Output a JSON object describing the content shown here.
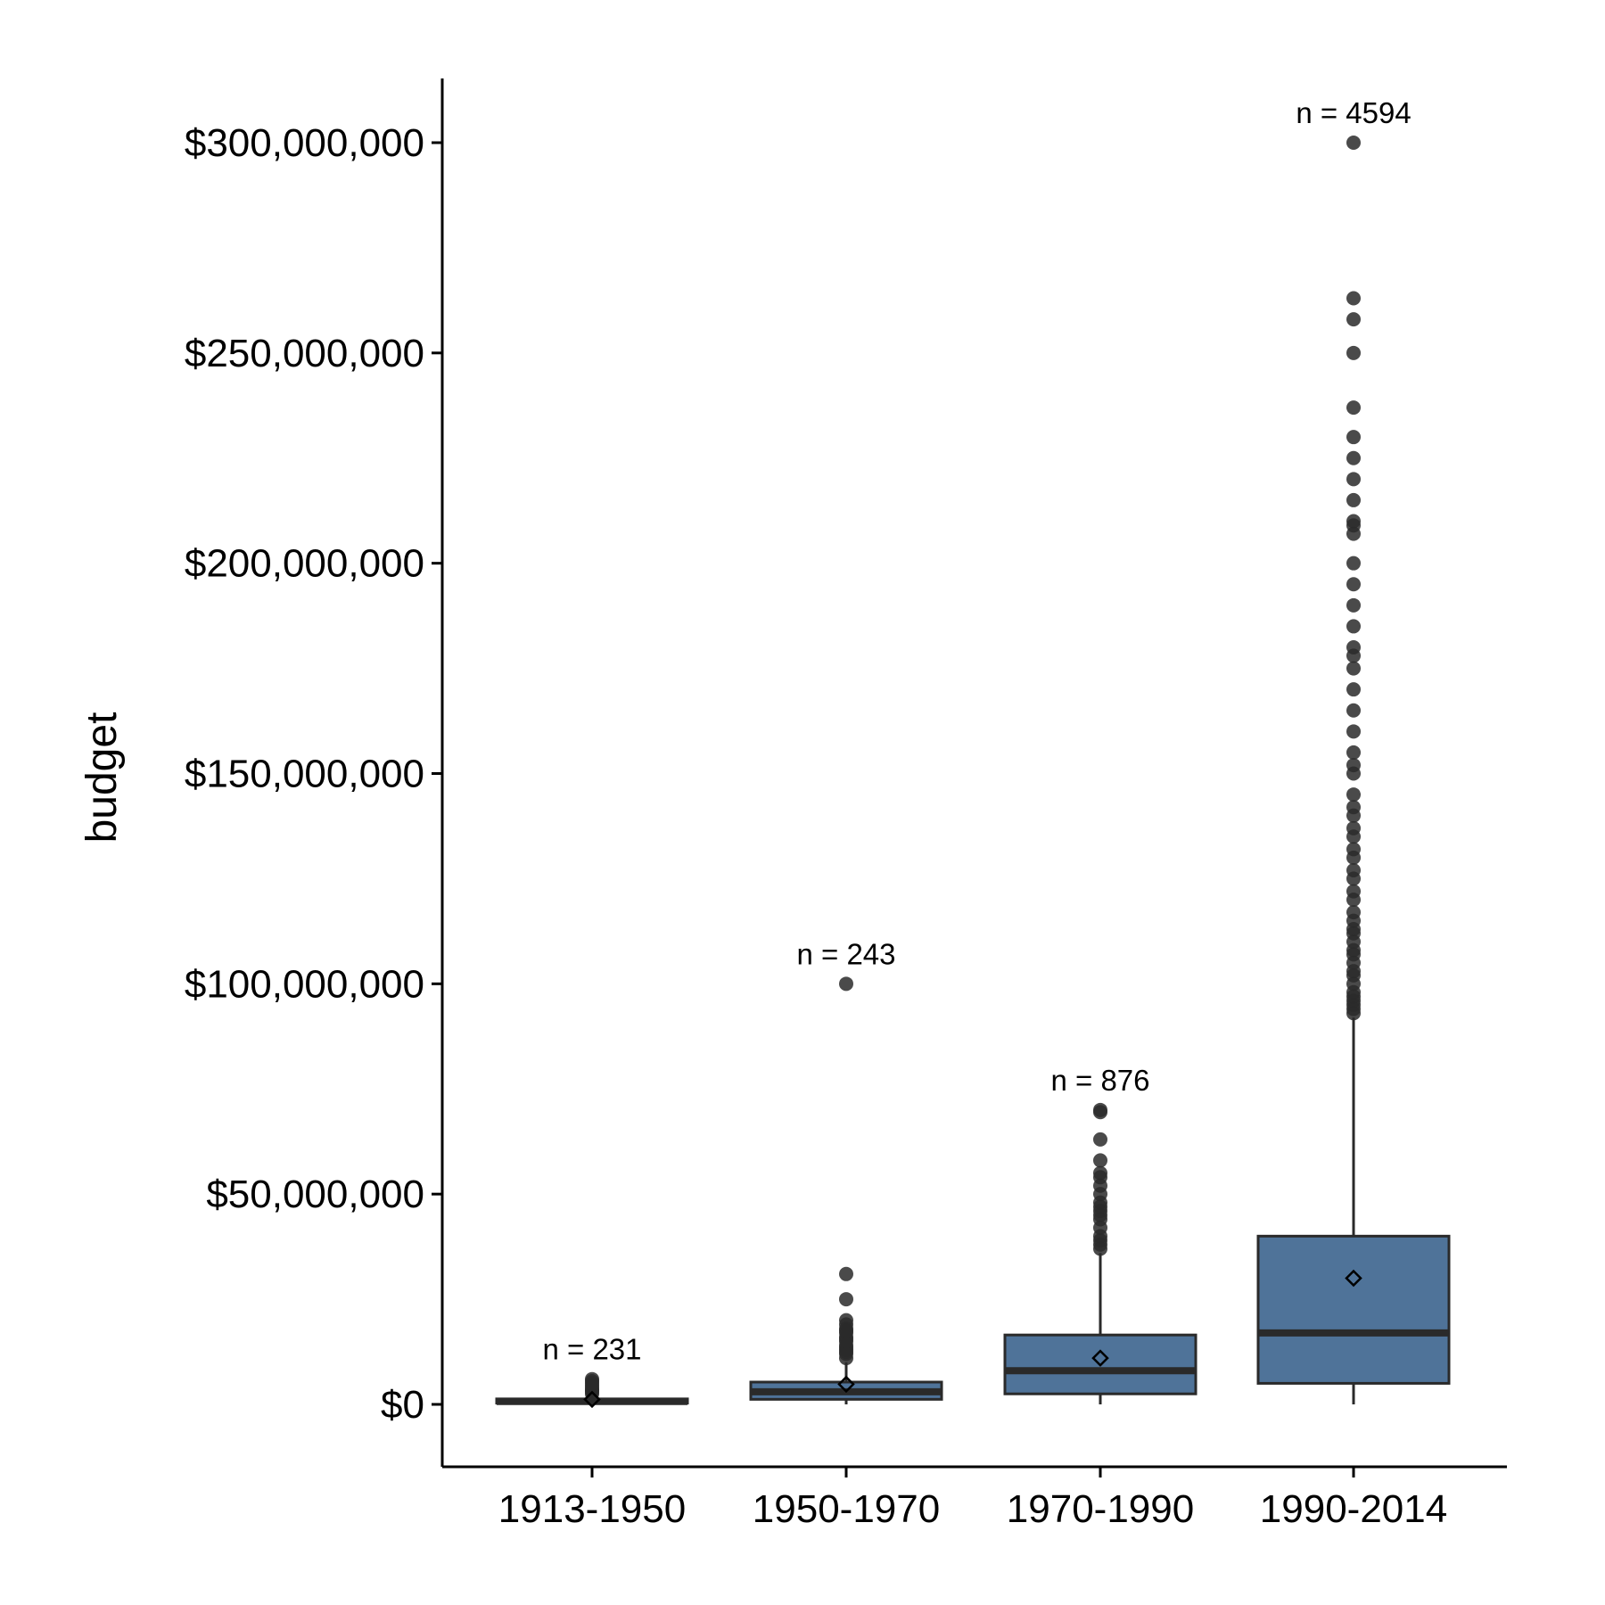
{
  "chart_data": {
    "type": "box",
    "ylabel": "budget",
    "xlabel": "",
    "ylim": [
      -15000000,
      315000000
    ],
    "yticks": [
      0,
      50000000,
      100000000,
      150000000,
      200000000,
      250000000,
      300000000
    ],
    "ytick_labels": [
      "$0",
      "$50,000,000",
      "$100,000,000",
      "$150,000,000",
      "$200,000,000",
      "$250,000,000",
      "$300,000,000"
    ],
    "categories": [
      "1913-1950",
      "1950-1970",
      "1970-1990",
      "1990-2014"
    ],
    "box_color": "#4f7399",
    "outlier_color": "#2a2a2a",
    "grid": false,
    "legend": "none",
    "groups": [
      {
        "category": "1913-1950",
        "n_label": "n = 231",
        "whisker_low": 0,
        "q1": 300000,
        "median": 700000,
        "q3": 1300000,
        "whisker_high": 2000000,
        "mean": 1200000,
        "outliers": [
          2500000,
          3000000,
          3300000,
          3500000,
          4000000,
          4500000,
          5000000,
          5500000,
          6000000
        ]
      },
      {
        "category": "1950-1970",
        "n_label": "n = 243",
        "whisker_low": 0,
        "q1": 1200000,
        "median": 3000000,
        "q3": 5300000,
        "whisker_high": 10000000,
        "mean": 4800000,
        "outliers": [
          11000000,
          12000000,
          12500000,
          13000000,
          13500000,
          14000000,
          15000000,
          15500000,
          16000000,
          17000000,
          17500000,
          18000000,
          19000000,
          20000000,
          25000000,
          31000000,
          100000000
        ]
      },
      {
        "category": "1970-1990",
        "n_label": "n = 876",
        "whisker_low": 0,
        "q1": 2500000,
        "median": 8000000,
        "q3": 16500000,
        "whisker_high": 36000000,
        "mean": 11000000,
        "outliers": [
          37000000,
          38000000,
          39000000,
          40000000,
          42000000,
          44000000,
          45000000,
          46000000,
          47000000,
          48000000,
          50000000,
          52000000,
          54000000,
          55000000,
          58000000,
          63000000,
          69500000,
          70000000
        ]
      },
      {
        "category": "1990-2014",
        "n_label": "n = 4594",
        "whisker_low": 0,
        "q1": 5000000,
        "median": 17000000,
        "q3": 40000000,
        "whisker_high": 92000000,
        "mean": 30000000,
        "outliers": [
          93000000,
          94000000,
          95000000,
          96000000,
          97000000,
          98000000,
          100000000,
          102000000,
          103000000,
          105000000,
          107000000,
          108000000,
          110000000,
          112000000,
          113000000,
          115000000,
          117000000,
          120000000,
          122000000,
          125000000,
          127000000,
          130000000,
          132000000,
          135000000,
          137000000,
          140000000,
          142000000,
          145000000,
          150000000,
          152000000,
          155000000,
          160000000,
          165000000,
          170000000,
          175000000,
          178000000,
          180000000,
          185000000,
          190000000,
          195000000,
          200000000,
          207000000,
          209000000,
          210000000,
          215000000,
          220000000,
          225000000,
          230000000,
          237000000,
          250000000,
          258000000,
          263000000,
          300000000
        ]
      }
    ]
  }
}
